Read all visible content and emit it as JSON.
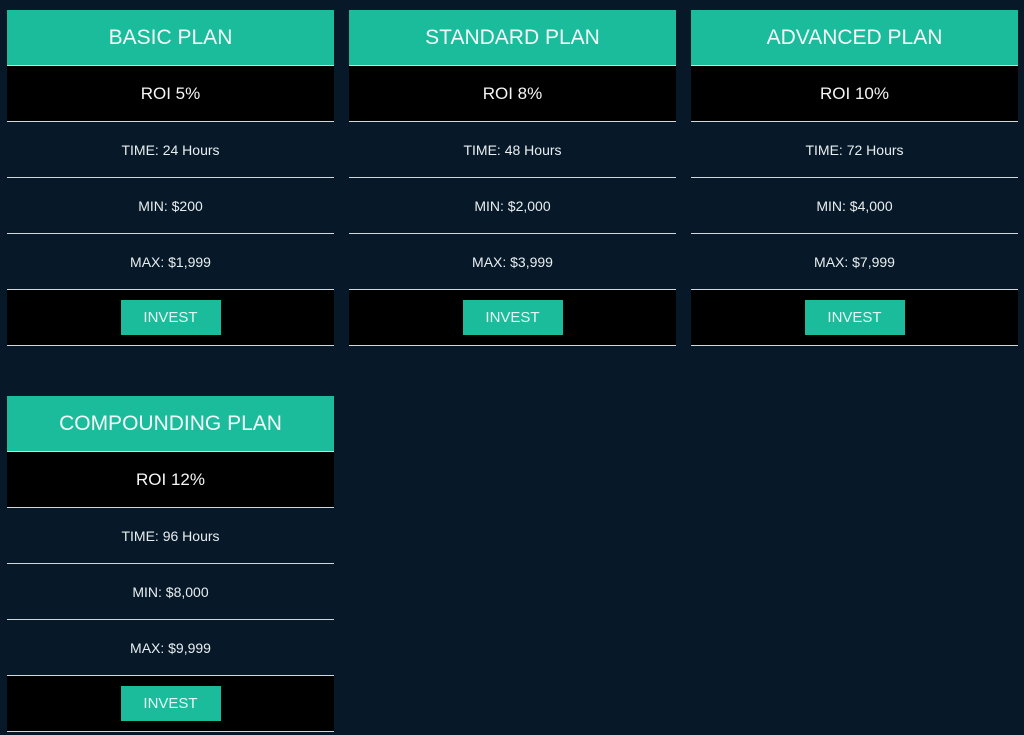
{
  "accent_color": "#1abc9c",
  "background_color": "#071828",
  "plans": [
    {
      "title": "BASIC PLAN",
      "roi": "ROI 5%",
      "time": "TIME: 24 Hours",
      "min": "MIN: $200",
      "max": "MAX: $1,999",
      "button": "INVEST"
    },
    {
      "title": "STANDARD PLAN",
      "roi": "ROI 8%",
      "time": "TIME: 48 Hours",
      "min": "MIN: $2,000",
      "max": "MAX: $3,999",
      "button": "INVEST"
    },
    {
      "title": "ADVANCED PLAN",
      "roi": "ROI 10%",
      "time": "TIME: 72 Hours",
      "min": "MIN: $4,000",
      "max": "MAX: $7,999",
      "button": "INVEST"
    },
    {
      "title": "COMPOUNDING PLAN",
      "roi": "ROI 12%",
      "time": "TIME: 96 Hours",
      "min": "MIN: $8,000",
      "max": "MAX: $9,999",
      "button": "INVEST"
    }
  ]
}
